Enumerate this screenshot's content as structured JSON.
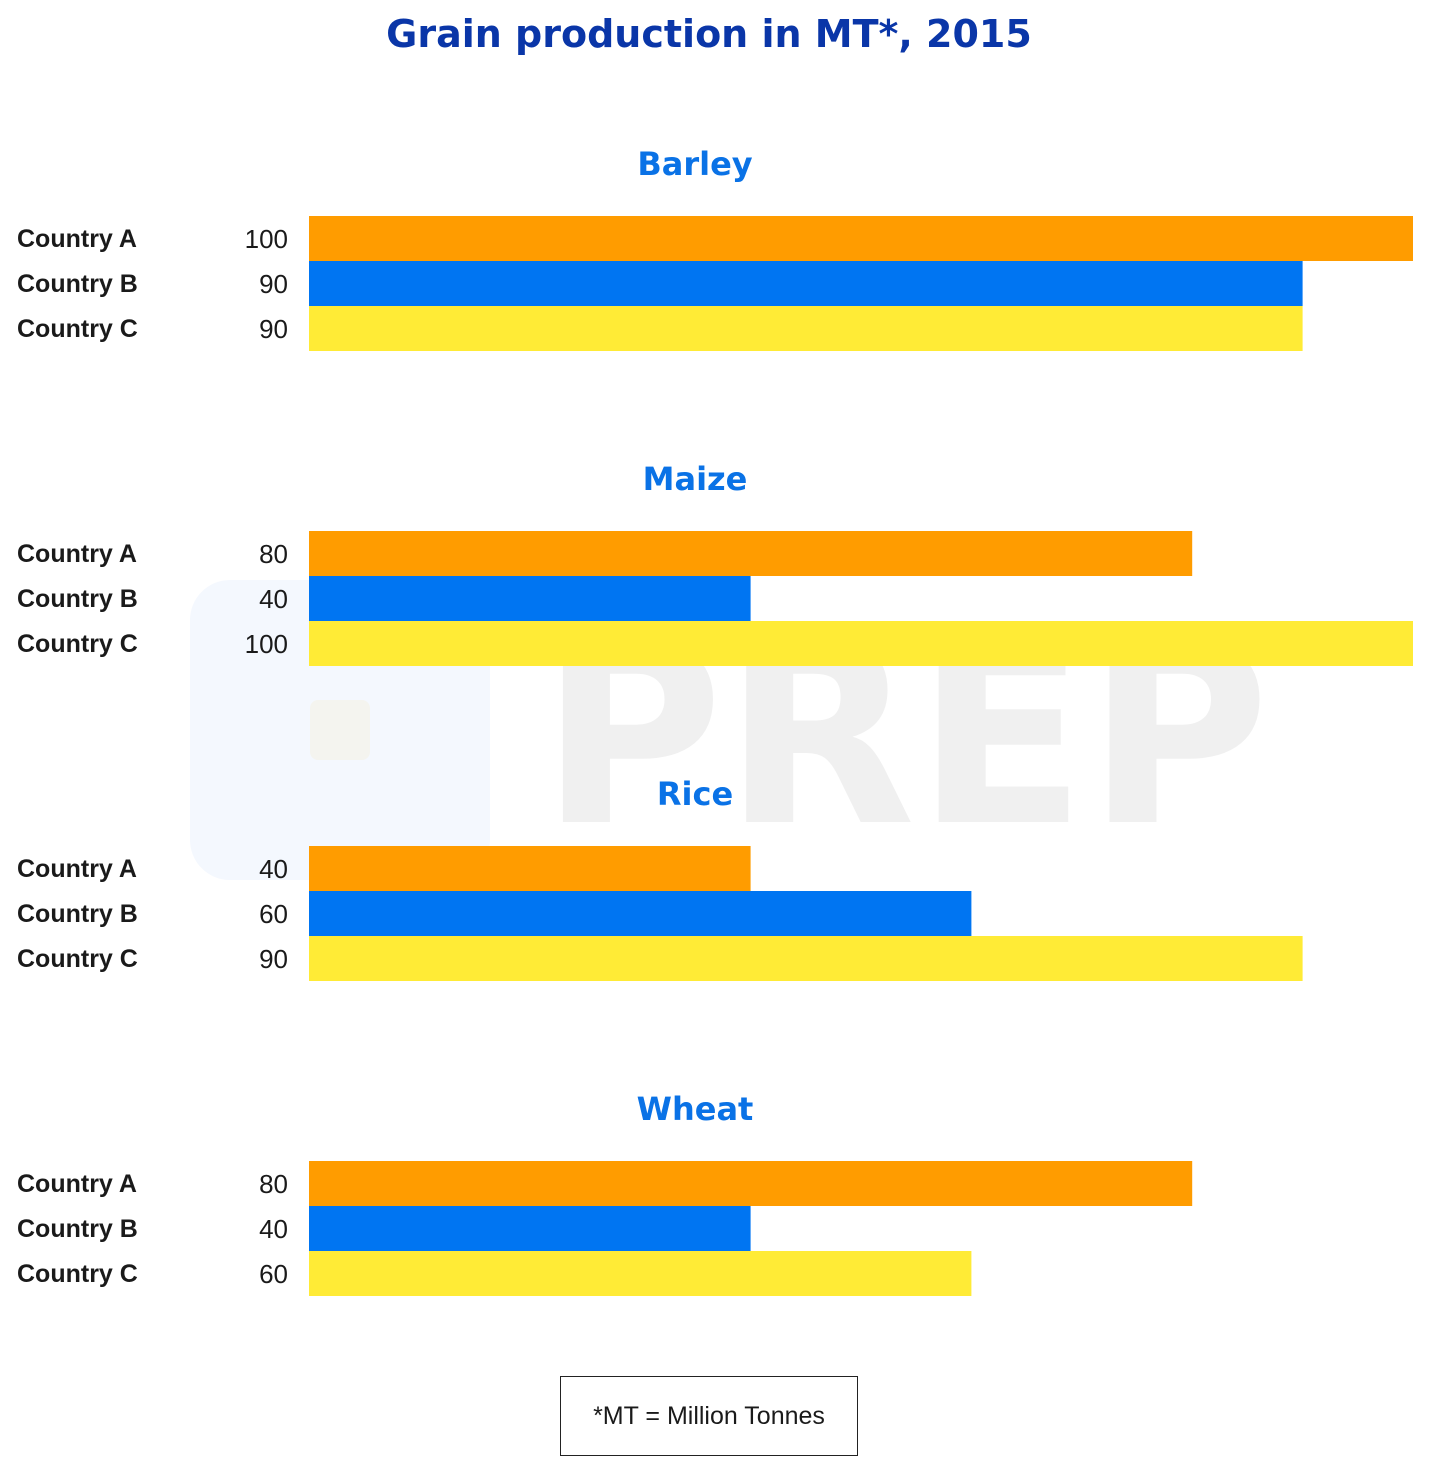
{
  "colors": {
    "title": "#0a36a8",
    "panel_title": "#0a72e6",
    "country_a": "#ff9c00",
    "country_b": "#0075f2",
    "country_c": "#ffeb36",
    "watermark": "#ececec"
  },
  "watermark": {
    "text": "PREP",
    "icon": "prep-logo-icon"
  },
  "chart_data": {
    "type": "bar",
    "orientation": "horizontal",
    "title": "Grain production in MT*, 2015",
    "unit": "MT",
    "xlim": [
      0,
      100
    ],
    "grid": false,
    "categories": [
      "Country A",
      "Country B",
      "Country C"
    ],
    "panels": [
      {
        "title": "Barley",
        "values": [
          100,
          90,
          90
        ]
      },
      {
        "title": "Maize",
        "values": [
          80,
          40,
          100
        ]
      },
      {
        "title": "Rice",
        "values": [
          40,
          60,
          90
        ]
      },
      {
        "title": "Wheat",
        "values": [
          80,
          40,
          60
        ]
      }
    ]
  },
  "footnote": "*MT = Million Tonnes"
}
